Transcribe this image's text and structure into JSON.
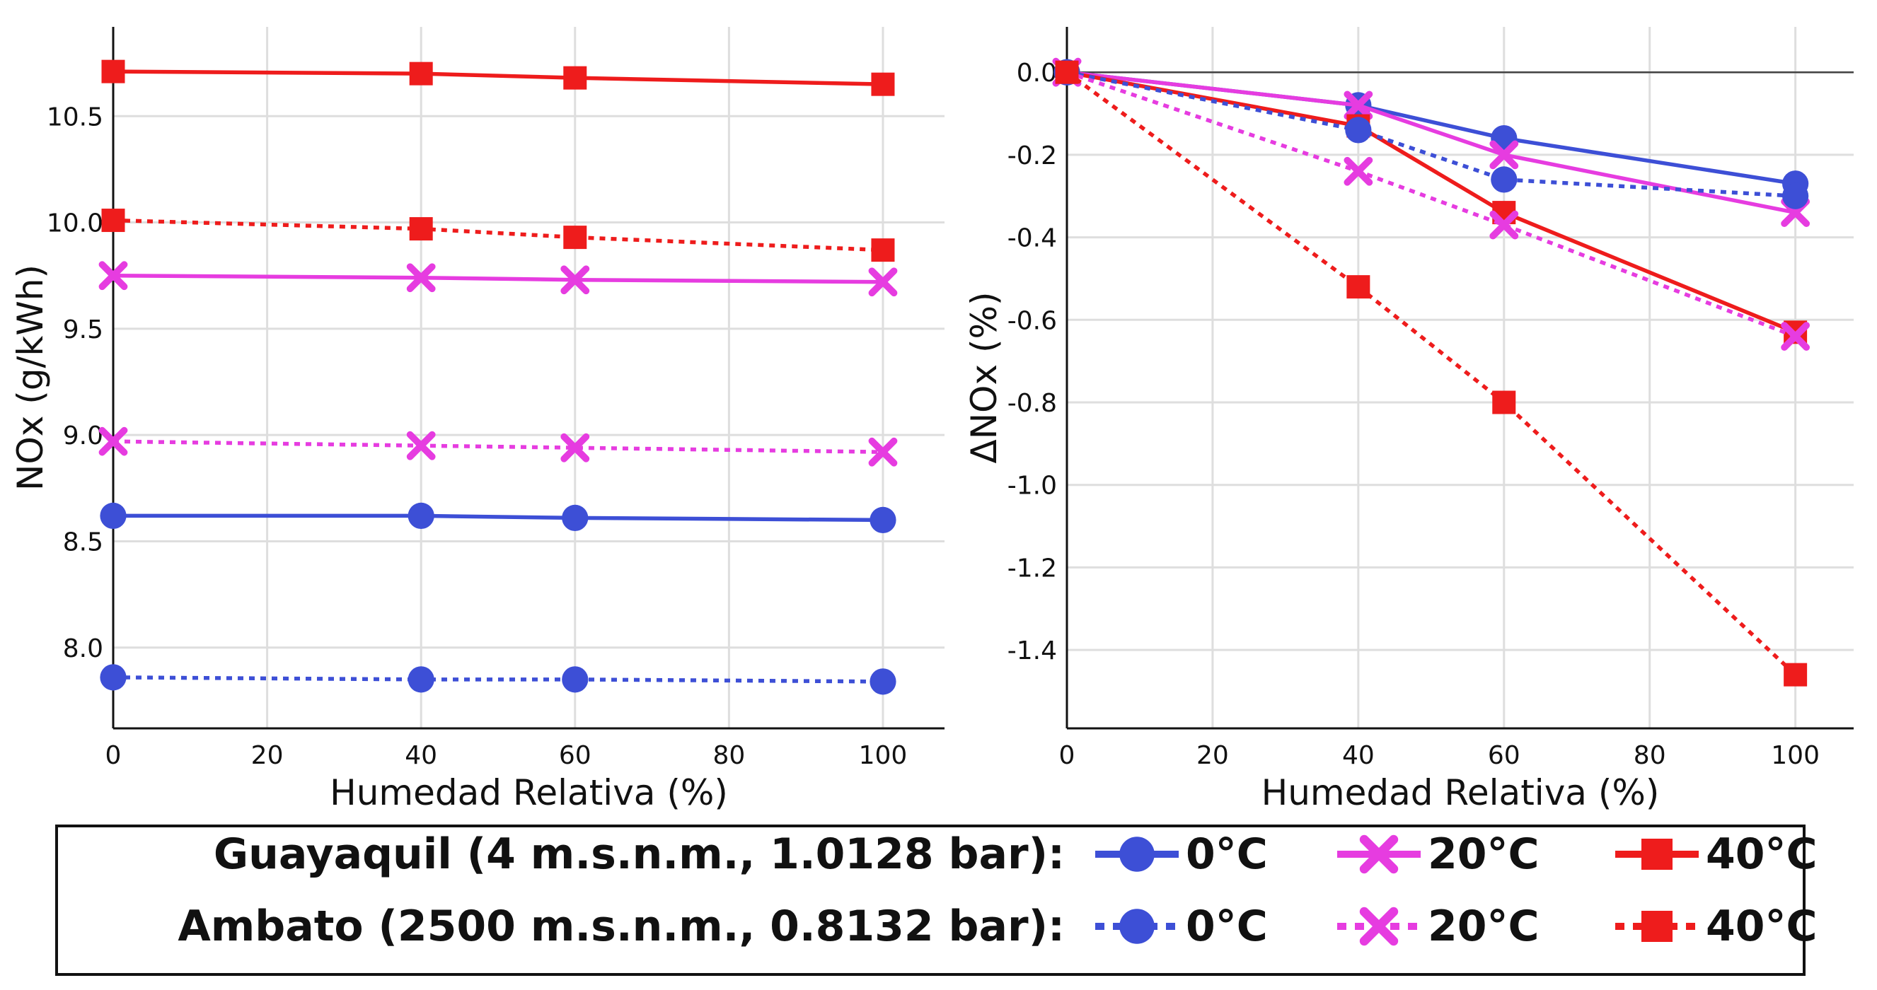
{
  "chart_data": [
    {
      "type": "line",
      "xlabel": "Humedad Relativa (%)",
      "ylabel": "NOx (g/kWh)",
      "xlim": [
        0,
        108
      ],
      "ylim": [
        7.62,
        10.92
      ],
      "xticks": [
        0,
        20,
        40,
        60,
        80,
        100
      ],
      "yticks": [
        8.0,
        8.5,
        9.0,
        9.5,
        10.0,
        10.5
      ],
      "x": [
        0,
        40,
        60,
        100
      ],
      "grid": true,
      "series": [
        {
          "name": "Guayaquil 0°C",
          "color": "#3d4fd6",
          "marker": "circle",
          "style": "solid",
          "values": [
            8.62,
            8.62,
            8.61,
            8.6
          ]
        },
        {
          "name": "Guayaquil 20°C",
          "color": "#e63ce0",
          "marker": "x",
          "style": "solid",
          "values": [
            9.75,
            9.74,
            9.73,
            9.72
          ]
        },
        {
          "name": "Guayaquil 40°C",
          "color": "#ee1c1c",
          "marker": "square",
          "style": "solid",
          "values": [
            10.71,
            10.7,
            10.68,
            10.65
          ]
        },
        {
          "name": "Ambato 0°C",
          "color": "#3d4fd6",
          "marker": "circle",
          "style": "dotted",
          "values": [
            7.86,
            7.85,
            7.85,
            7.84
          ]
        },
        {
          "name": "Ambato 20°C",
          "color": "#e63ce0",
          "marker": "x",
          "style": "dotted",
          "values": [
            8.97,
            8.95,
            8.94,
            8.92
          ]
        },
        {
          "name": "Ambato 40°C",
          "color": "#ee1c1c",
          "marker": "square",
          "style": "dotted",
          "values": [
            10.01,
            9.97,
            9.93,
            9.87
          ]
        }
      ]
    },
    {
      "type": "line",
      "xlabel": "Humedad Relativa (%)",
      "ylabel": "ΔNOx (%)",
      "xlim": [
        0,
        108
      ],
      "ylim": [
        -1.59,
        0.11
      ],
      "xticks": [
        0,
        20,
        40,
        60,
        80,
        100
      ],
      "yticks": [
        0.0,
        -0.2,
        -0.4,
        -0.6,
        -0.8,
        -1.0,
        -1.2,
        -1.4
      ],
      "zero_line": true,
      "x": [
        0,
        40,
        60,
        100
      ],
      "grid": true,
      "series": [
        {
          "name": "Guayaquil 0°C",
          "color": "#3d4fd6",
          "marker": "circle",
          "style": "solid",
          "values": [
            0.0,
            -0.08,
            -0.16,
            -0.27
          ]
        },
        {
          "name": "Guayaquil 20°C",
          "color": "#e63ce0",
          "marker": "x",
          "style": "solid",
          "values": [
            0.0,
            -0.08,
            -0.2,
            -0.34
          ]
        },
        {
          "name": "Guayaquil 40°C",
          "color": "#ee1c1c",
          "marker": "square",
          "style": "solid",
          "values": [
            0.0,
            -0.13,
            -0.34,
            -0.63
          ]
        },
        {
          "name": "Ambato 0°C",
          "color": "#3d4fd6",
          "marker": "circle",
          "style": "dotted",
          "values": [
            0.0,
            -0.14,
            -0.26,
            -0.3
          ]
        },
        {
          "name": "Ambato 20°C",
          "color": "#e63ce0",
          "marker": "x",
          "style": "dotted",
          "values": [
            0.0,
            -0.24,
            -0.37,
            -0.64
          ]
        },
        {
          "name": "Ambato 40°C",
          "color": "#ee1c1c",
          "marker": "square",
          "style": "dotted",
          "values": [
            0.0,
            -0.52,
            -0.8,
            -1.46
          ]
        }
      ]
    }
  ],
  "legend": {
    "rows": [
      {
        "label": "Guayaquil (4 m.s.n.m., 1.0128 bar):",
        "style": "solid",
        "entries": [
          {
            "text": "0°C",
            "marker": "circle",
            "color": "#3d4fd6"
          },
          {
            "text": "20°C",
            "marker": "x",
            "color": "#e63ce0"
          },
          {
            "text": "40°C",
            "marker": "square",
            "color": "#ee1c1c"
          }
        ]
      },
      {
        "label": "Ambato (2500 m.s.n.m., 0.8132 bar):",
        "style": "dotted",
        "entries": [
          {
            "text": "0°C",
            "marker": "circle",
            "color": "#3d4fd6"
          },
          {
            "text": "20°C",
            "marker": "x",
            "color": "#e63ce0"
          },
          {
            "text": "40°C",
            "marker": "square",
            "color": "#ee1c1c"
          }
        ]
      }
    ]
  }
}
